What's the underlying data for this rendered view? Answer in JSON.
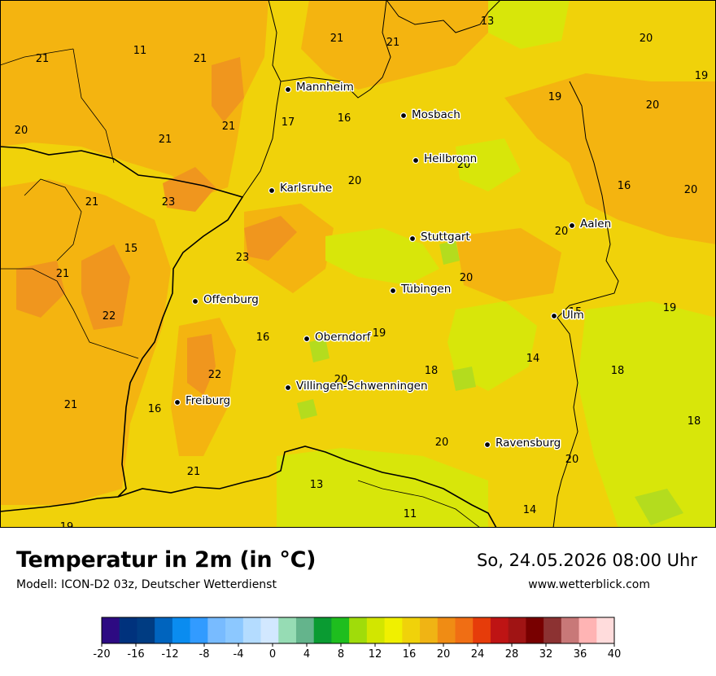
{
  "header": {
    "title": "Temperatur in 2m (in °C)",
    "model": "Modell: ICON-D2 03z, Deutscher Wetterdienst",
    "datetime": "So, 24.05.2026 08:00 Uhr",
    "website": "www.wetterblick.com"
  },
  "colors": {
    "base_yellow": "#f0d20a",
    "orange_light": "#f4b410",
    "orange": "#f0961e",
    "green_yellow": "#d8e60a",
    "light_green": "#b4dc1e"
  },
  "cities": [
    {
      "name": "Mannheim"
    },
    {
      "name": "Mosbach"
    },
    {
      "name": "Heilbronn"
    },
    {
      "name": "Karlsruhe"
    },
    {
      "name": "Stuttgart"
    },
    {
      "name": "Aalen"
    },
    {
      "name": "Tübingen"
    },
    {
      "name": "Offenburg"
    },
    {
      "name": "Ulm"
    },
    {
      "name": "Oberndorf"
    },
    {
      "name": "Villingen-Schwenningen"
    },
    {
      "name": "Freiburg"
    },
    {
      "name": "Ravensburg"
    }
  ],
  "values": [
    "13",
    "21",
    "21",
    "20",
    "21",
    "11",
    "21",
    "19",
    "19",
    "20",
    "20",
    "16",
    "17",
    "21",
    "21",
    "20",
    "21",
    "16",
    "23",
    "20",
    "15",
    "20",
    "23",
    "21",
    "20",
    "22",
    "19",
    "15",
    "16",
    "14",
    "18",
    "22",
    "20",
    "18",
    "16",
    "20",
    "18",
    "21",
    "19",
    "20",
    "21",
    "13",
    "14",
    "20",
    "11",
    "19"
  ],
  "legend": {
    "colors": [
      "#2d0a82",
      "#00327d",
      "#003c82",
      "#0064be",
      "#0a8cf0",
      "#329bff",
      "#78bbff",
      "#8cc8ff",
      "#b4dcff",
      "#d2e8ff",
      "#96dcb4",
      "#64b48c",
      "#0a9b32",
      "#1ebe1e",
      "#a0dc0a",
      "#d2e600",
      "#f0f000",
      "#f0d20a",
      "#f0b414",
      "#f08c14",
      "#f06e14",
      "#e63c0a",
      "#be1414",
      "#a01414",
      "#780000",
      "#8c3232",
      "#c87878",
      "#ffb4b4",
      "#ffdcdc"
    ],
    "ticks": [
      "-20",
      "-16",
      "-12",
      "-8",
      "-4",
      "0",
      "4",
      "8",
      "12",
      "16",
      "20",
      "24",
      "28",
      "32",
      "36",
      "40"
    ]
  }
}
